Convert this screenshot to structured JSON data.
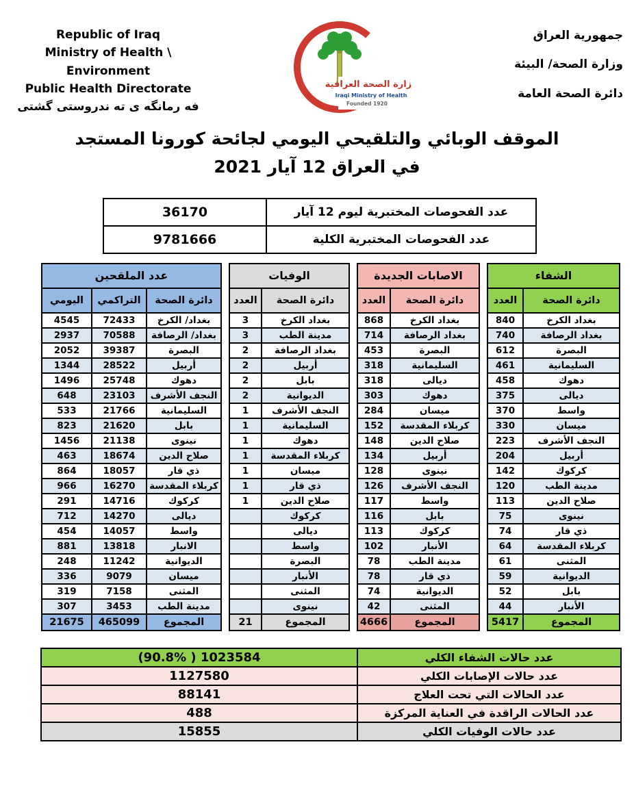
{
  "colors": {
    "blue": "#95B9E3",
    "row": "#DCE6F1",
    "gray": "#DCDCDC",
    "gray-total": "#DBDBDB",
    "pink": "#F3B7B3",
    "pink-total": "#E9A39E",
    "green": "#92D050",
    "sum-pink": "#F9E4E1",
    "sum-gray": "#DCDCDC",
    "crescent-red": "#CF3A30",
    "palm-green": "#2E9E36"
  },
  "header": {
    "left": [
      "Republic of Iraq",
      "Ministry of Health \\ Environment",
      "Public Health Directorate",
      "فه رمانگه ی ته ندروستی گشتی"
    ],
    "right": [
      "جمهورية العراق",
      "وزارة الصحة/ البيئة",
      "دائرة الصحة العامة"
    ],
    "logo": {
      "arabic": "وزارة الصحة العراقية",
      "english": "Iraqi Ministry of Health",
      "founded": "Founded 1920"
    }
  },
  "title": {
    "line1": "الموقف الوبائي والتلقيحي اليومي لجائحة كورونا المستجد",
    "line2": "في العراق  12  آيار 2021"
  },
  "tests": {
    "rows": [
      {
        "label": "عدد الفحوصات المختبرية  ليوم 12 آيار",
        "value": "36170"
      },
      {
        "label": "عدد الفحوصات المختبرية الكلية",
        "value": "9781666"
      }
    ]
  },
  "tables": {
    "vaccinated": {
      "title": "عدد الملقحين",
      "columns": [
        "اليومي",
        "التراكمي",
        "دائرة الصحة"
      ],
      "rows": [
        {
          "name": "بغداد/ الكرخ",
          "cumulative": "72433",
          "daily": "4545"
        },
        {
          "name": "بغداد/ الرصافة",
          "cumulative": "70588",
          "daily": "2937"
        },
        {
          "name": "البصرة",
          "cumulative": "39387",
          "daily": "2052"
        },
        {
          "name": "أربيل",
          "cumulative": "28522",
          "daily": "1344"
        },
        {
          "name": "دهوك",
          "cumulative": "25748",
          "daily": "1496"
        },
        {
          "name": "النجف الأشرف",
          "cumulative": "23103",
          "daily": "648"
        },
        {
          "name": "السليمانية",
          "cumulative": "21766",
          "daily": "533"
        },
        {
          "name": "بابل",
          "cumulative": "21620",
          "daily": "823"
        },
        {
          "name": "نينوى",
          "cumulative": "21138",
          "daily": "1456"
        },
        {
          "name": "صلاح الدين",
          "cumulative": "18674",
          "daily": "463"
        },
        {
          "name": "ذي قار",
          "cumulative": "18057",
          "daily": "864"
        },
        {
          "name": "كربلاء المقدسة",
          "cumulative": "16270",
          "daily": "966"
        },
        {
          "name": "كركوك",
          "cumulative": "14716",
          "daily": "291"
        },
        {
          "name": "ديالى",
          "cumulative": "14270",
          "daily": "712"
        },
        {
          "name": "واسط",
          "cumulative": "14057",
          "daily": "454"
        },
        {
          "name": "الانبار",
          "cumulative": "13818",
          "daily": "881"
        },
        {
          "name": "الديوانية",
          "cumulative": "11242",
          "daily": "248"
        },
        {
          "name": "ميسان",
          "cumulative": "9079",
          "daily": "336"
        },
        {
          "name": "المثنى",
          "cumulative": "7158",
          "daily": "319"
        },
        {
          "name": "مدينة الطب",
          "cumulative": "3453",
          "daily": "307"
        }
      ],
      "total": {
        "label": "المجموع",
        "cumulative": "465099",
        "daily": "21675"
      }
    },
    "deaths": {
      "title": "الوفيات",
      "columns": [
        "العدد",
        "دائرة الصحة"
      ],
      "rows": [
        {
          "name": "بغداد الكرخ",
          "value": "3"
        },
        {
          "name": "مدينة الطب",
          "value": "3"
        },
        {
          "name": "بغداد الرصافة",
          "value": "2"
        },
        {
          "name": "أربيل",
          "value": "2"
        },
        {
          "name": "بابل",
          "value": "2"
        },
        {
          "name": "الديوانية",
          "value": "2"
        },
        {
          "name": "النجف الأشرف",
          "value": "1"
        },
        {
          "name": "السليمانية",
          "value": "1"
        },
        {
          "name": "دهوك",
          "value": "1"
        },
        {
          "name": "كربلاء المقدسة",
          "value": "1"
        },
        {
          "name": "ميسان",
          "value": "1"
        },
        {
          "name": "ذي قار",
          "value": "1"
        },
        {
          "name": "صلاح الدين",
          "value": "1"
        },
        {
          "name": "كركوك",
          "value": ""
        },
        {
          "name": "ديالى",
          "value": ""
        },
        {
          "name": "واسط",
          "value": ""
        },
        {
          "name": "البصرة",
          "value": ""
        },
        {
          "name": "الأنبار",
          "value": ""
        },
        {
          "name": "المثنى",
          "value": ""
        },
        {
          "name": "نينوى",
          "value": ""
        }
      ],
      "total": {
        "label": "المجموع",
        "value": "21"
      }
    },
    "infections": {
      "title": "الاصابات الجديدة",
      "columns": [
        "العدد",
        "دائرة الصحة"
      ],
      "rows": [
        {
          "name": "بغداد الكرخ",
          "value": "868"
        },
        {
          "name": "بغداد الرصافة",
          "value": "714"
        },
        {
          "name": "البصرة",
          "value": "453"
        },
        {
          "name": "السليمانية",
          "value": "318"
        },
        {
          "name": "ديالى",
          "value": "318"
        },
        {
          "name": "دهوك",
          "value": "303"
        },
        {
          "name": "ميسان",
          "value": "284"
        },
        {
          "name": "كربلاء المقدسة",
          "value": "152"
        },
        {
          "name": "صلاح الدين",
          "value": "148"
        },
        {
          "name": "أربيل",
          "value": "134"
        },
        {
          "name": "نينوى",
          "value": "128"
        },
        {
          "name": "النجف الأشرف",
          "value": "126"
        },
        {
          "name": "واسط",
          "value": "117"
        },
        {
          "name": "بابل",
          "value": "116"
        },
        {
          "name": "كركوك",
          "value": "113"
        },
        {
          "name": "الأنبار",
          "value": "102"
        },
        {
          "name": "مدينة الطب",
          "value": "78"
        },
        {
          "name": "ذي قار",
          "value": "78"
        },
        {
          "name": "الديوانية",
          "value": "74"
        },
        {
          "name": "المثنى",
          "value": "42"
        }
      ],
      "total": {
        "label": "المجموع",
        "value": "4666"
      }
    },
    "recovered": {
      "title": "الشفاء",
      "columns": [
        "العدد",
        "دائرة الصحة"
      ],
      "rows": [
        {
          "name": "بغداد الكرخ",
          "value": "840"
        },
        {
          "name": "بغداد الرصافة",
          "value": "740"
        },
        {
          "name": "البصرة",
          "value": "612"
        },
        {
          "name": "السليمانية",
          "value": "461"
        },
        {
          "name": "دهوك",
          "value": "458"
        },
        {
          "name": "ديالى",
          "value": "375"
        },
        {
          "name": "واسط",
          "value": "370"
        },
        {
          "name": "ميسان",
          "value": "330"
        },
        {
          "name": "النجف الأشرف",
          "value": "223"
        },
        {
          "name": "أربيل",
          "value": "204"
        },
        {
          "name": "كركوك",
          "value": "142"
        },
        {
          "name": "مدينة الطب",
          "value": "120"
        },
        {
          "name": "صلاح الدين",
          "value": "113"
        },
        {
          "name": "نينوى",
          "value": "75"
        },
        {
          "name": "ذي قار",
          "value": "74"
        },
        {
          "name": "كربلاء المقدسة",
          "value": "64"
        },
        {
          "name": "المثنى",
          "value": "61"
        },
        {
          "name": "الديوانية",
          "value": "59"
        },
        {
          "name": "بابل",
          "value": "52"
        },
        {
          "name": "الأنبار",
          "value": "44"
        }
      ],
      "total": {
        "label": "المجموع",
        "value": "5417"
      }
    }
  },
  "summary": {
    "rows": [
      {
        "label": "عدد حالات الشفاء الكلي",
        "value": "(90.8% ) 1023584",
        "tone": "green"
      },
      {
        "label": "عدد حالات الإصابات الكلي",
        "value": "1127580",
        "tone": "pink"
      },
      {
        "label": "عدد الحالات التي تحت العلاج",
        "value": "88141",
        "tone": "pink"
      },
      {
        "label": "عدد الحالات الراقدة في العناية المركزة",
        "value": "488",
        "tone": "pink"
      },
      {
        "label": "عدد حالات الوفيات الكلي",
        "value": "15855",
        "tone": "gray"
      }
    ]
  }
}
